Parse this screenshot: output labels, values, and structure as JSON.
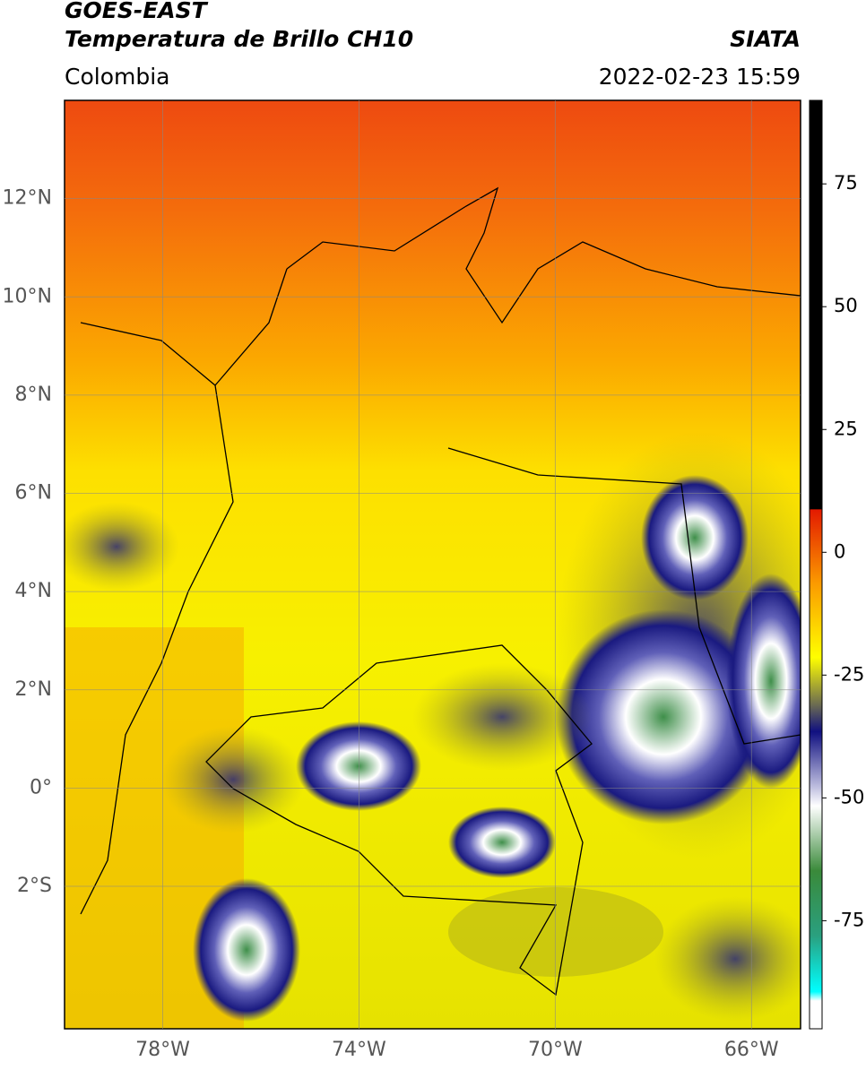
{
  "header": {
    "title": "GOES-EAST",
    "subtitle": "Temperatura de Brillo CH10",
    "source": "SIATA",
    "region": "Colombia",
    "datetime": "2022-02-23 15:59"
  },
  "map": {
    "xlim": [
      -80,
      -65
    ],
    "ylim": [
      -4.9,
      14
    ],
    "xticks": [
      {
        "value": -78,
        "label": "78°W"
      },
      {
        "value": -74,
        "label": "74°W"
      },
      {
        "value": -70,
        "label": "70°W"
      },
      {
        "value": -66,
        "label": "66°W"
      }
    ],
    "yticks": [
      {
        "value": 12,
        "label": "12°N"
      },
      {
        "value": 10,
        "label": "10°N"
      },
      {
        "value": 8,
        "label": "8°N"
      },
      {
        "value": 6,
        "label": "6°N"
      },
      {
        "value": 4,
        "label": "4°N"
      },
      {
        "value": 2,
        "label": "2°N"
      },
      {
        "value": 0,
        "label": "0°"
      },
      {
        "value": -2,
        "label": "2°S"
      }
    ],
    "grid": true
  },
  "colorbar": {
    "lim": [
      -97,
      92
    ],
    "ticks": [
      75,
      50,
      25,
      0,
      -25,
      -50,
      -75
    ]
  }
}
